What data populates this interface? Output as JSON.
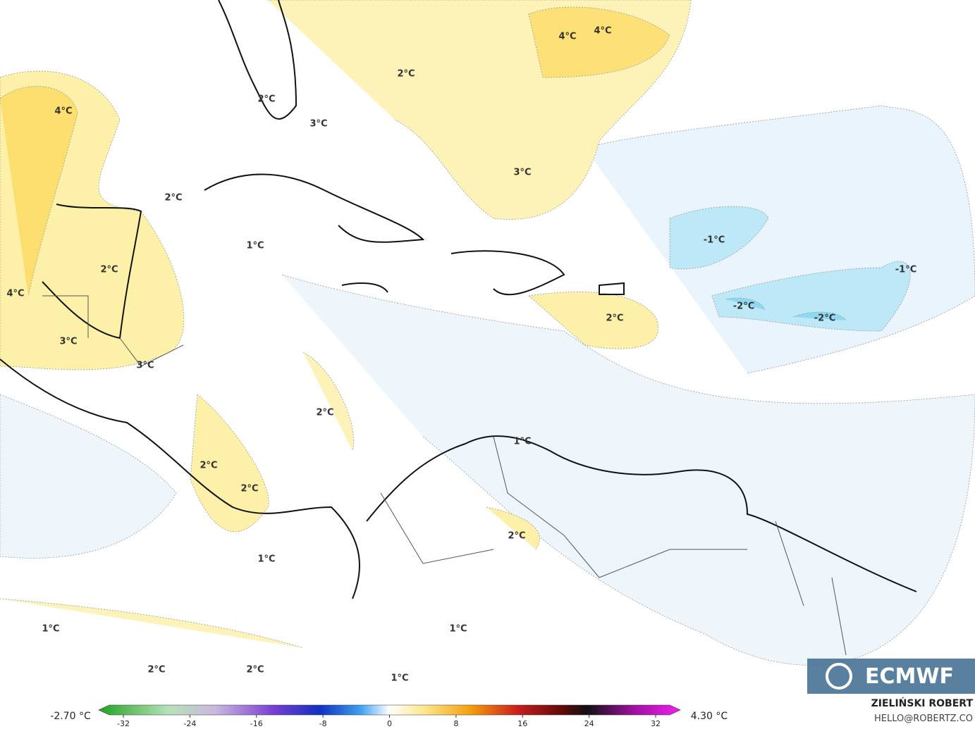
{
  "map": {
    "contour_labels": [
      "4°C",
      "4°C",
      "2°C",
      "2°C",
      "3°C",
      "4°C",
      "3°C",
      "2°C",
      "1°C",
      "2°C",
      "-1°C",
      "-1°C",
      "4°C",
      "-2°C",
      "-2°C",
      "2°C",
      "3°C",
      "3°C",
      "2°C",
      "1°C",
      "2°C",
      "2°C",
      "2°C",
      "1°C",
      "1°C",
      "1°C",
      "2°C",
      "2°C",
      "1°C"
    ],
    "logo": "ECMWF"
  },
  "colorbar": {
    "min_label": "-2.70 °C",
    "max_label": "4.30 °C",
    "ticks": [
      -32,
      -24,
      -16,
      -8,
      0,
      8,
      16,
      24,
      32
    ],
    "range": [
      -32,
      32
    ]
  },
  "credit": {
    "author": "ZIELIŃSKI ROBERT",
    "contact": "HELLO@ROBERTZ.CO"
  }
}
